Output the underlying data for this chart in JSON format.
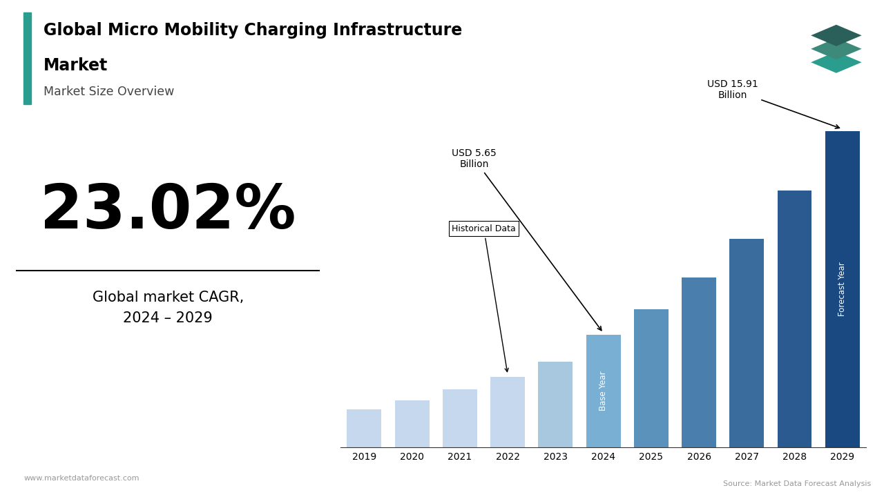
{
  "title_line1": "Global Micro Mobility Charging Infrastructure",
  "title_line2": "Market",
  "subtitle": "Market Size Overview",
  "cagr_value": "23.02%",
  "cagr_label": "Global market CAGR,\n2024 – 2029",
  "years": [
    2019,
    2020,
    2021,
    2022,
    2023,
    2024,
    2025,
    2026,
    2027,
    2028,
    2029
  ],
  "values": [
    1.9,
    2.35,
    2.9,
    3.55,
    4.3,
    5.65,
    6.95,
    8.55,
    10.5,
    12.9,
    15.91
  ],
  "bar_colors": [
    "#c5d8ed",
    "#c5d8ed",
    "#c5d8ed",
    "#c5d8ed",
    "#a8c8e0",
    "#7aafd4",
    "#5b92bc",
    "#4a7fad",
    "#3a6d9e",
    "#2a5a8f",
    "#1a4880"
  ],
  "annotation_5_65": "USD 5.65\nBillion",
  "annotation_15_91": "USD 15.91\nBillion",
  "annotation_historical": "Historical Data",
  "label_base_year": "Base Year",
  "label_forecast_year": "Forecast Year",
  "website": "www.marketdataforecast.com",
  "source": "Source: Market Data Forecast Analysis",
  "accent_color": "#2a9d8f",
  "logo_color_dark": "#2a5f5a",
  "logo_color_mid": "#3d8a7a",
  "background_color": "#ffffff"
}
